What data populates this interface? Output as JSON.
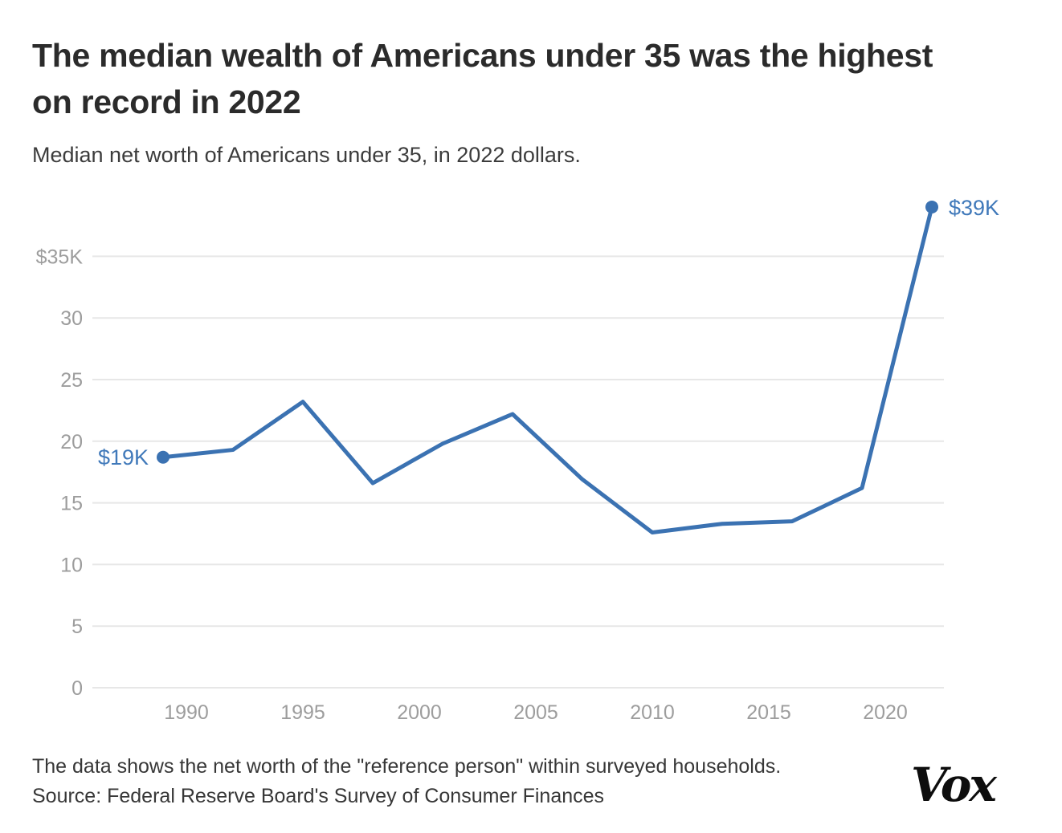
{
  "chart_data": {
    "type": "line",
    "title": "The median wealth of Americans under 35 was the highest on record in 2022",
    "subtitle": "Median net worth of Americans under 35, in 2022 dollars.",
    "xlabel": "",
    "ylabel": "",
    "x": [
      1989,
      1992,
      1995,
      1998,
      2001,
      2004,
      2007,
      2010,
      2013,
      2016,
      2019,
      2022
    ],
    "values": [
      18.7,
      19.3,
      23.2,
      16.6,
      19.8,
      22.2,
      16.9,
      12.6,
      13.3,
      13.5,
      16.2,
      39.0
    ],
    "units": "thousands of 2022 dollars",
    "ylim": [
      0,
      40
    ],
    "xlim": [
      1986,
      2023
    ],
    "grid": true,
    "legend": "none",
    "y_ticks": [
      {
        "value": 35,
        "label": "$35K"
      },
      {
        "value": 30,
        "label": "30"
      },
      {
        "value": 25,
        "label": "25"
      },
      {
        "value": 20,
        "label": "20"
      },
      {
        "value": 15,
        "label": "15"
      },
      {
        "value": 10,
        "label": "10"
      },
      {
        "value": 5,
        "label": "5"
      },
      {
        "value": 0,
        "label": "0"
      }
    ],
    "x_ticks": [
      {
        "value": 1990,
        "label": "1990"
      },
      {
        "value": 1995,
        "label": "1995"
      },
      {
        "value": 2000,
        "label": "2000"
      },
      {
        "value": 2005,
        "label": "2005"
      },
      {
        "value": 2010,
        "label": "2010"
      },
      {
        "value": 2015,
        "label": "2015"
      },
      {
        "value": 2020,
        "label": "2020"
      }
    ],
    "point_labels": {
      "first": "$19K",
      "last": "$39K"
    },
    "colors": {
      "line": "#3b72b2",
      "point_label": "#4079ba",
      "grid": "#e7e7e7",
      "axis_text": "#9d9d9d"
    }
  },
  "footer": {
    "note": "The data shows the net worth of the \"reference person\" within surveyed households.",
    "source": "Source: Federal Reserve Board's Survey of Consumer Finances",
    "logo": "Vox"
  }
}
